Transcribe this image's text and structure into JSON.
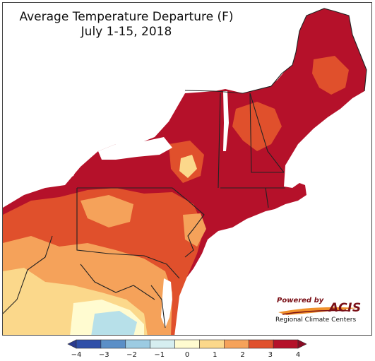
{
  "title": {
    "line1": "Average Temperature Departure (F)",
    "line2": "July 1-15, 2018"
  },
  "badge": {
    "powered_by": "Powered by",
    "acis": "ACIS",
    "rcc": "Regional Climate Centers"
  },
  "legend": {
    "ticks": [
      "−4",
      "−3",
      "−2",
      "−1",
      "0",
      "1",
      "2",
      "3",
      "4"
    ],
    "colors": [
      "#2f4fa8",
      "#5b8fc7",
      "#9ccbe2",
      "#d6eef0",
      "#fffbd0",
      "#fbd88b",
      "#f5a25a",
      "#e0502c",
      "#b5112a"
    ],
    "under_color": "#2a3b8f",
    "over_color": "#8b0a24"
  },
  "colors": {
    "very_warm": "#b5112a",
    "warm": "#e0502c",
    "mild_warm": "#f5a25a",
    "slight_warm": "#fbd88b",
    "near_normal": "#fffbd0",
    "cool": "#b7e0e9",
    "water": "#ffffff",
    "border": "#222222",
    "county": "#7a5040"
  }
}
